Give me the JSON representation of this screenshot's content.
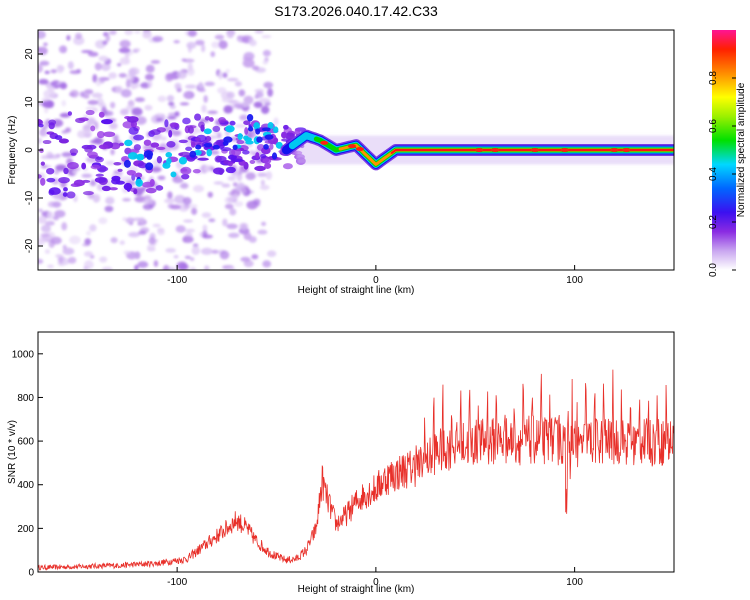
{
  "chart_data": [
    {
      "type": "heatmap",
      "title": "S173.2026.040.17.42.C33",
      "xlabel": "Height of straight line (km)",
      "ylabel": "Frequency (Hz)",
      "xlim": [
        -170,
        150
      ],
      "ylim": [
        -25,
        25
      ],
      "xticks": [
        -100,
        0,
        100
      ],
      "yticks": [
        -20,
        -10,
        0,
        10,
        20
      ],
      "colorbar": {
        "label": "Normalized spectral amplitude",
        "range": [
          0,
          1
        ],
        "ticks": [
          "0.0",
          "0.2",
          "0.4",
          "0.6",
          "0.8"
        ],
        "colors": [
          "#ffffff",
          "#8a2be2",
          "#0000ff",
          "#00d8ff",
          "#00e000",
          "#ffff00",
          "#ff8c00",
          "#ff0000",
          "#ff1493"
        ]
      },
      "ridge": {
        "description_points_x": [
          -120,
          -100,
          -80,
          -60,
          -45,
          -35,
          -28,
          -20,
          -10,
          0,
          10,
          50,
          100,
          150
        ],
        "frequency_hz": [
          -4,
          -2,
          3,
          4,
          0,
          3,
          2,
          0,
          1,
          -3,
          0,
          0,
          0,
          0
        ]
      }
    },
    {
      "type": "line",
      "xlabel": "Height of straight line (km)",
      "ylabel": "SNR (10 * v/v)",
      "xlim": [
        -170,
        150
      ],
      "ylim": [
        0,
        1100
      ],
      "xticks": [
        -100,
        0,
        100
      ],
      "yticks": [
        0,
        200,
        400,
        600,
        800,
        1000
      ],
      "line_color": "#e8302a",
      "x": [
        -170,
        -150,
        -130,
        -110,
        -95,
        -85,
        -75,
        -70,
        -65,
        -60,
        -55,
        -50,
        -45,
        -40,
        -35,
        -30,
        -27,
        -25,
        -20,
        -15,
        -10,
        -5,
        0,
        5,
        10,
        15,
        20,
        25,
        30,
        40,
        50,
        60,
        70,
        80,
        90,
        95,
        98,
        100,
        102,
        105,
        110,
        120,
        130,
        140,
        150
      ],
      "values": [
        20,
        25,
        30,
        40,
        60,
        130,
        200,
        240,
        200,
        140,
        100,
        70,
        55,
        60,
        100,
        200,
        420,
        350,
        220,
        260,
        320,
        360,
        380,
        430,
        450,
        470,
        480,
        500,
        550,
        580,
        590,
        600,
        600,
        605,
        600,
        590,
        550,
        500,
        560,
        600,
        600,
        600,
        590,
        595,
        600
      ]
    }
  ]
}
